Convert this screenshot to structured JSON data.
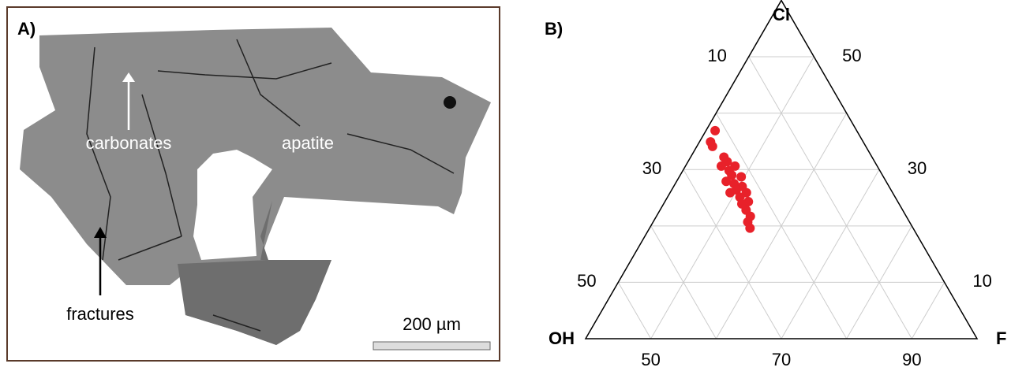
{
  "image_panel": {
    "label": "A)",
    "annotations": [
      "carbonates",
      "apatite",
      "fractures"
    ],
    "scale_bar": "200 µm"
  },
  "chart_data": {
    "type": "ternary",
    "panel_label": "B)",
    "vertices": {
      "top": "Cl",
      "left": "OH",
      "right": "F"
    },
    "cl_axis": {
      "lim": [
        0,
        60
      ],
      "ticks": [
        10,
        30,
        50
      ],
      "grid": [
        10,
        20,
        30,
        40,
        50
      ]
    },
    "f_axis": {
      "lim": [
        40,
        100
      ],
      "ticks": [
        50,
        70,
        90
      ],
      "grid": [
        50,
        60,
        70,
        80,
        90
      ]
    },
    "oh_axis": {
      "lim": [
        60,
        0
      ],
      "ticks": [
        50,
        30,
        10
      ],
      "grid": [
        50,
        40,
        30,
        20,
        10
      ]
    },
    "grid": true,
    "series": [
      {
        "color": "#e8212a",
        "cl": [
          36.9,
          34.9,
          34.1,
          32.2,
          31.4,
          30.6,
          29.8,
          30.6,
          29.0,
          28.7,
          27.9,
          27.5,
          27.0,
          26.4,
          25.9,
          25.9,
          25.1,
          24.3,
          23.9,
          22.8,
          21.7,
          20.7,
          19.6
        ],
        "f": [
          41.4,
          41.7,
          42.4,
          45.1,
          46.0,
          45.5,
          47.1,
          47.6,
          47.9,
          49.5,
          47.6,
          49.0,
          50.5,
          49.9,
          51.7,
          49.2,
          51.1,
          52.8,
          52.0,
          53.2,
          54.4,
          54.5,
          55.4
        ]
      }
    ]
  }
}
